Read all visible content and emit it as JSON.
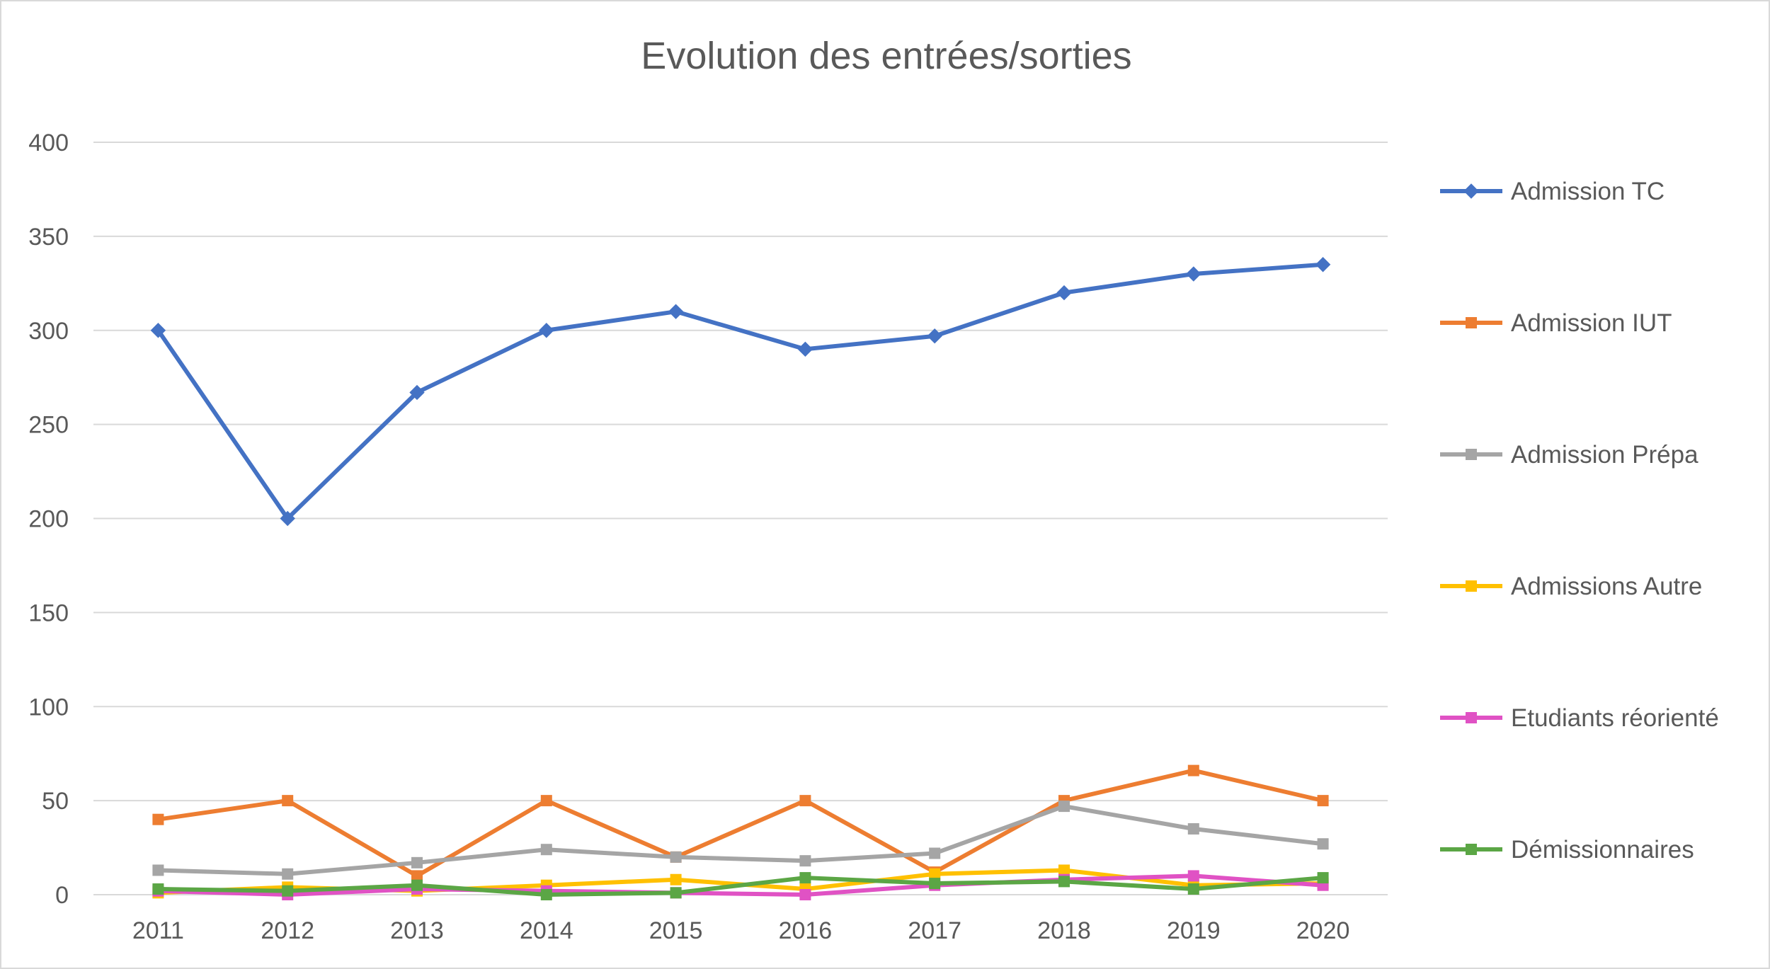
{
  "chart_data": {
    "type": "line",
    "title": "Evolution des entrées/sorties",
    "xlabel": "",
    "ylabel": "",
    "categories": [
      "2011",
      "2012",
      "2013",
      "2014",
      "2015",
      "2016",
      "2017",
      "2018",
      "2019",
      "2020"
    ],
    "ylim": [
      0,
      400
    ],
    "yticks": [
      0,
      50,
      100,
      150,
      200,
      250,
      300,
      350,
      400
    ],
    "grid": true,
    "legend_position": "right",
    "series": [
      {
        "name": "Admission TC",
        "color": "#4472C4",
        "marker": "diamond",
        "values": [
          300,
          200,
          267,
          300,
          310,
          290,
          297,
          320,
          330,
          335
        ]
      },
      {
        "name": "Admission IUT",
        "color": "#ED7D31",
        "marker": "square",
        "values": [
          40,
          50,
          10,
          50,
          20,
          50,
          12,
          50,
          66,
          50
        ]
      },
      {
        "name": "Admission Prépa",
        "color": "#A5A5A5",
        "marker": "square",
        "values": [
          13,
          11,
          17,
          24,
          20,
          18,
          22,
          47,
          35,
          27
        ]
      },
      {
        "name": "Admissions Autre",
        "color": "#FFC000",
        "marker": "square",
        "values": [
          1,
          4,
          2,
          5,
          8,
          3,
          11,
          13,
          5,
          6
        ]
      },
      {
        "name": "Etudiants réorienté",
        "color": "#E052C4",
        "marker": "square",
        "values": [
          2,
          0,
          3,
          2,
          1,
          0,
          5,
          8,
          10,
          5
        ]
      },
      {
        "name": "Démissionnaires",
        "color": "#5BA645",
        "marker": "square",
        "values": [
          3,
          2,
          5,
          0,
          1,
          9,
          6,
          7,
          3,
          9
        ]
      }
    ]
  }
}
